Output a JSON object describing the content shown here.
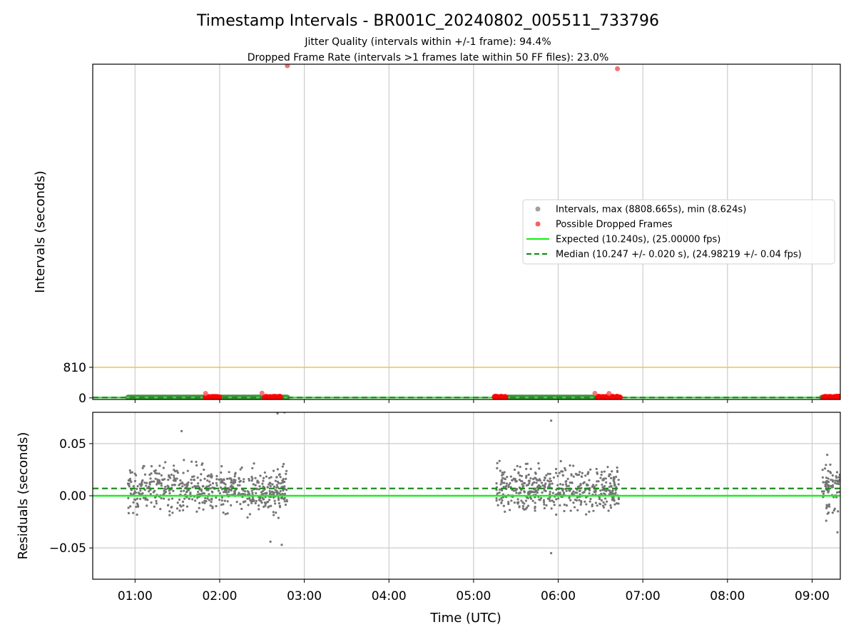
{
  "chart_data": {
    "type": "scatter",
    "title": "Timestamp Intervals - BR001C_20240802_005511_733796",
    "subtitle_1": "Jitter Quality (intervals within +/-1 frame): 94.4%",
    "subtitle_2": "Dropped Frame Rate (intervals >1 frames late within 50 FF files): 23.0%",
    "xlabel": "Time (UTC)",
    "x_ticks": [
      "01:00",
      "02:00",
      "03:00",
      "04:00",
      "05:00",
      "06:00",
      "07:00",
      "08:00",
      "09:00"
    ],
    "xlim": [
      "00:30",
      "09:20"
    ],
    "grid": true,
    "top_panel": {
      "ylabel": "Intervals (seconds)",
      "y_ticks": [
        0,
        810
      ],
      "y_tick_labels": [
        "0",
        "810"
      ],
      "ylim": [
        -42,
        8850
      ],
      "threshold_line": {
        "value": 810,
        "color": "#f5c242"
      },
      "intervals_max_s": 8808.665,
      "intervals_min_s": 8.624,
      "large_gaps": [
        {
          "time": "02:48",
          "value": 8808.665
        },
        {
          "time": "06:42",
          "value": 8730
        }
      ],
      "interval_runs": [
        {
          "start": "00:55",
          "end": "02:48",
          "value": 10.25
        },
        {
          "start": "05:16",
          "end": "06:43",
          "value": 10.25
        },
        {
          "start": "09:07",
          "end": "09:20",
          "value": 10.25
        }
      ],
      "dropped_clusters": [
        {
          "start": "01:50",
          "end": "02:00",
          "value": 15
        },
        {
          "start": "02:32",
          "end": "02:43",
          "value": 15
        },
        {
          "start": "05:15",
          "end": "05:23",
          "value": 15
        },
        {
          "start": "06:28",
          "end": "06:44",
          "value": 15
        },
        {
          "start": "09:08",
          "end": "09:20",
          "value": 15
        }
      ],
      "dropped_outliers": [
        {
          "time": "01:50",
          "value": 118
        },
        {
          "time": "02:30",
          "value": 125
        },
        {
          "time": "06:26",
          "value": 120
        },
        {
          "time": "06:36",
          "value": 118
        }
      ],
      "expected_value": 10.24,
      "median_value": 10.247
    },
    "bottom_panel": {
      "ylabel": "Residuals (seconds)",
      "y_ticks": [
        0.05,
        0.0,
        -0.05
      ],
      "y_tick_labels": [
        "0.05",
        "0.00",
        "−0.05"
      ],
      "ylim": [
        -0.08,
        0.08
      ],
      "residual_clusters": [
        {
          "start": "00:55",
          "end": "02:48",
          "center": 0.006,
          "spread": 0.015,
          "count": 600
        },
        {
          "start": "05:16",
          "end": "06:43",
          "center": 0.007,
          "spread": 0.015,
          "count": 480
        },
        {
          "start": "09:07",
          "end": "09:20",
          "center": 0.006,
          "spread": 0.016,
          "count": 80
        }
      ],
      "residual_outliers": [
        {
          "time": "01:33",
          "value": 0.062
        },
        {
          "time": "02:41",
          "value": 0.079
        },
        {
          "time": "02:46",
          "value": 0.08
        },
        {
          "time": "02:44",
          "value": -0.047
        },
        {
          "time": "02:36",
          "value": -0.044
        },
        {
          "time": "05:55",
          "value": 0.072
        },
        {
          "time": "05:55",
          "value": -0.055
        },
        {
          "time": "09:18",
          "value": -0.035
        }
      ],
      "expected_residual": 0.0,
      "median_residual": 0.007
    },
    "legend": {
      "placement": "right",
      "entries": [
        {
          "label": "Intervals, max (8808.665s), min (8.624s)",
          "marker": "dot",
          "color": "#a0a0a0"
        },
        {
          "label": "Possible Dropped Frames",
          "marker": "dot",
          "color": "#f56262"
        },
        {
          "label": "Expected (10.240s), (25.00000 fps)",
          "marker": "solid-line",
          "color": "#1aef1a"
        },
        {
          "label": "Median (10.247 +/- 0.020 s), (24.98219 +/- 0.04 fps)",
          "marker": "dashed-line",
          "color": "#1a8c1a"
        }
      ]
    },
    "colors": {
      "interval_points": "#7a7a7a",
      "interval_run": "#4a8c4a",
      "dropped": "#ff0000",
      "expected": "#1aef1a",
      "median": "#1a8c1a",
      "residual_points": "#757575",
      "grid": "#cccccc"
    }
  }
}
